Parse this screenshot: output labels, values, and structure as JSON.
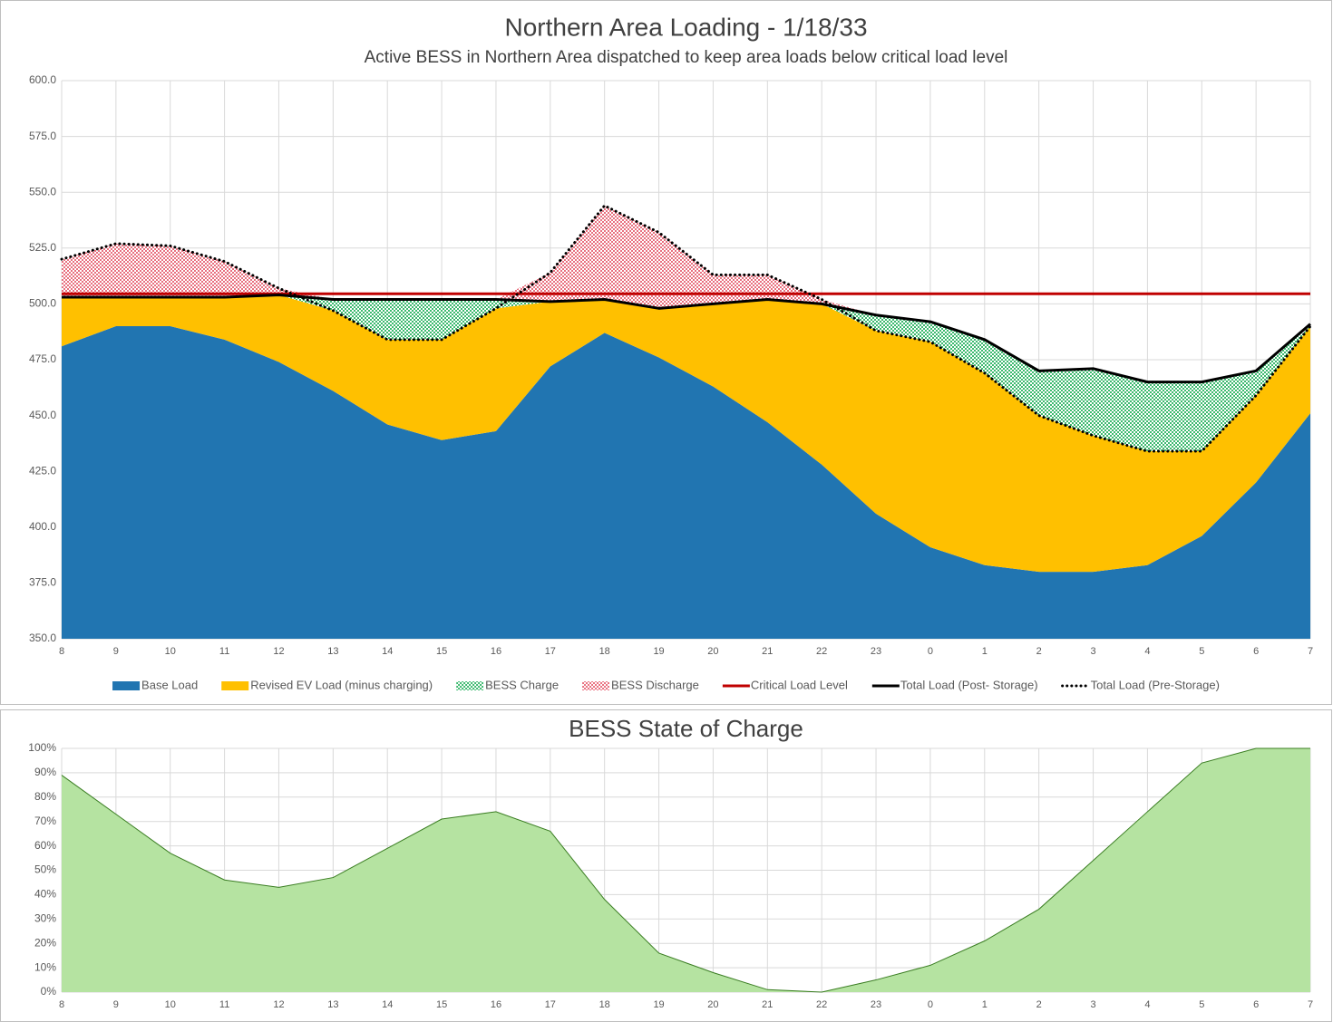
{
  "chart_data": [
    {
      "type": "area",
      "title": "Northern Area Loading  - 1/18/33",
      "subtitle": "Active BESS in Northern Area dispatched to keep area loads below critical load level",
      "categories": [
        "8",
        "9",
        "10",
        "11",
        "12",
        "13",
        "14",
        "15",
        "16",
        "17",
        "18",
        "19",
        "20",
        "21",
        "22",
        "23",
        "0",
        "1",
        "2",
        "3",
        "4",
        "5",
        "6",
        "7"
      ],
      "ylim": [
        350,
        600
      ],
      "yticks": [
        {
          "value": 350,
          "label": "350.0"
        },
        {
          "value": 375,
          "label": "375.0"
        },
        {
          "value": 400,
          "label": "400.0"
        },
        {
          "value": 425,
          "label": "425.0"
        },
        {
          "value": 450,
          "label": "450.0"
        },
        {
          "value": 475,
          "label": "475.0"
        },
        {
          "value": 500,
          "label": "500.0"
        },
        {
          "value": 525,
          "label": "525.0"
        },
        {
          "value": 550,
          "label": "550.0"
        },
        {
          "value": 575,
          "label": "575.0"
        },
        {
          "value": 600,
          "label": "600.0"
        }
      ],
      "grid": true,
      "legend": "bottom",
      "series": [
        {
          "name": "Base Load",
          "kind": "area",
          "color": "#2175b1",
          "values": [
            481,
            490,
            490,
            484,
            474,
            461,
            446,
            439,
            443,
            472,
            487,
            476,
            463,
            447,
            428,
            406,
            391,
            383,
            380,
            380,
            383,
            396,
            420,
            451
          ]
        },
        {
          "name": "Revised EV Load (minus charging)",
          "kind": "area",
          "color": "#ffc000",
          "values": [
            22,
            13,
            13,
            19,
            30,
            36,
            38,
            45,
            55,
            29,
            15,
            22,
            37,
            55,
            72,
            82,
            92,
            86,
            70,
            61,
            51,
            38,
            39,
            39
          ]
        },
        {
          "name": "BESS Charge",
          "kind": "area",
          "color": "#3cb96e",
          "fill_pattern": "checkerboard",
          "values": [
            0,
            0,
            0,
            0,
            0,
            5,
            18,
            18,
            4,
            0,
            0,
            0,
            0,
            0,
            0,
            7,
            9,
            15,
            20,
            30,
            31,
            31,
            11,
            1
          ]
        },
        {
          "name": "BESS Discharge",
          "kind": "area",
          "color": "#e8707f",
          "fill_pattern": "checkerboard",
          "values": [
            17,
            24,
            23,
            16,
            3,
            0,
            0,
            0,
            0,
            13,
            42,
            34,
            13,
            11,
            2,
            0,
            0,
            0,
            0,
            0,
            0,
            0,
            0,
            0
          ]
        },
        {
          "name": "Critical Load Level",
          "kind": "line",
          "color": "#c00000",
          "values": [
            504.5,
            504.5,
            504.5,
            504.5,
            504.5,
            504.5,
            504.5,
            504.5,
            504.5,
            504.5,
            504.5,
            504.5,
            504.5,
            504.5,
            504.5,
            504.5,
            504.5,
            504.5,
            504.5,
            504.5,
            504.5,
            504.5,
            504.5,
            504.5
          ]
        },
        {
          "name": "Total Load (Post- Storage)",
          "kind": "line",
          "color": "#000000",
          "values": [
            503,
            503,
            503,
            503,
            504,
            502,
            502,
            502,
            502,
            501,
            502,
            498,
            500,
            502,
            500,
            495,
            492,
            484,
            470,
            471,
            465,
            465,
            470,
            491
          ]
        },
        {
          "name": "Total Load (Pre-Storage)",
          "kind": "line",
          "color": "#000000",
          "dash": "dotted",
          "values": [
            520,
            527,
            526,
            519,
            507,
            497,
            484,
            484,
            498,
            514,
            544,
            532,
            513,
            513,
            502,
            488,
            483,
            469,
            450,
            441,
            434,
            434,
            459,
            490
          ]
        }
      ]
    },
    {
      "type": "area",
      "title": "BESS State of Charge",
      "categories": [
        "8",
        "9",
        "10",
        "11",
        "12",
        "13",
        "14",
        "15",
        "16",
        "17",
        "18",
        "19",
        "20",
        "21",
        "22",
        "23",
        "0",
        "1",
        "2",
        "3",
        "4",
        "5",
        "6",
        "7"
      ],
      "ylim": [
        0,
        100
      ],
      "yticks": [
        {
          "value": 0,
          "label": "0%"
        },
        {
          "value": 10,
          "label": "10%"
        },
        {
          "value": 20,
          "label": "20%"
        },
        {
          "value": 30,
          "label": "30%"
        },
        {
          "value": 40,
          "label": "40%"
        },
        {
          "value": 50,
          "label": "50%"
        },
        {
          "value": 60,
          "label": "60%"
        },
        {
          "value": 70,
          "label": "70%"
        },
        {
          "value": 80,
          "label": "80%"
        },
        {
          "value": 90,
          "label": "90%"
        },
        {
          "value": 100,
          "label": "100%"
        }
      ],
      "grid": true,
      "color": "#b5e3a1",
      "line_color": "#3a7d22",
      "values": [
        89,
        73,
        57,
        46,
        43,
        47,
        59,
        71,
        74,
        66,
        38,
        16,
        8,
        1,
        0,
        5,
        11,
        21,
        34,
        54,
        74,
        94,
        100,
        100
      ]
    }
  ]
}
